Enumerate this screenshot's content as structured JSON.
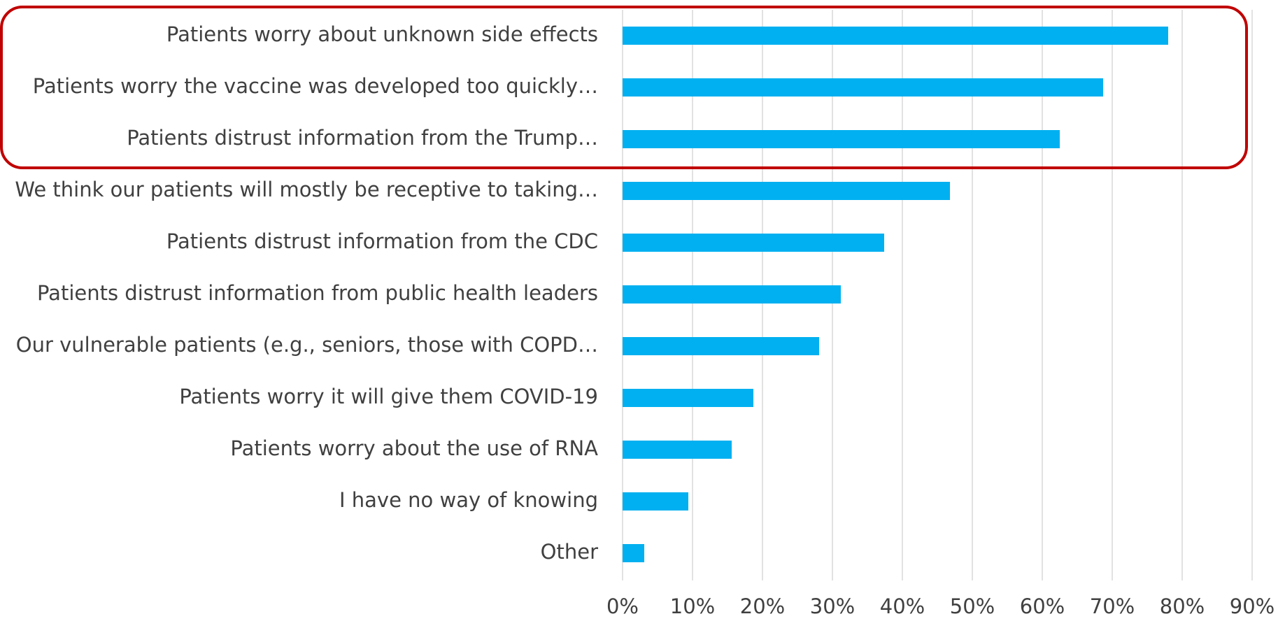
{
  "chart_data": {
    "type": "bar",
    "orientation": "horizontal",
    "categories": [
      "Patients worry about unknown side effects",
      "Patients worry the vaccine was developed too quickly…",
      "Patients distrust information from the Trump…",
      "We think our patients will mostly be receptive to taking…",
      "Patients distrust information from the CDC",
      "Patients distrust information from public health leaders",
      "Our vulnerable patients (e.g., seniors, those with COPD…",
      "Patients worry it will give them COVID-19",
      "Patients worry about the use of RNA",
      "I have no way of knowing",
      "Other"
    ],
    "values": [
      78,
      68.7,
      62.5,
      46.8,
      37.4,
      31.2,
      28.1,
      18.7,
      15.6,
      9.4,
      3.1
    ],
    "title": "",
    "xlabel": "",
    "ylabel": "",
    "xlim": [
      0,
      90
    ],
    "ticks": [
      "0%",
      "10%",
      "20%",
      "30%",
      "40%",
      "50%",
      "60%",
      "70%",
      "80%",
      "90%"
    ],
    "tick_values": [
      0,
      10,
      20,
      30,
      40,
      50,
      60,
      70,
      80,
      90
    ],
    "grid": true,
    "legend": "none",
    "bar_color": "#00b0f0",
    "highlight_color": "#c00000",
    "highlighted_categories": [
      0,
      1,
      2
    ]
  }
}
